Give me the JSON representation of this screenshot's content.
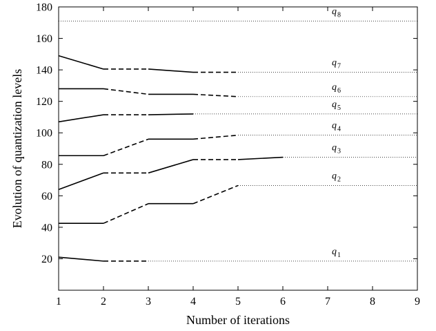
{
  "chart_data": {
    "type": "line",
    "title": "",
    "xlabel": "Number of iterations",
    "ylabel": "Evolution of quantization levels",
    "xlim": [
      1,
      9
    ],
    "ylim": [
      0,
      180
    ],
    "xticks": [
      1,
      2,
      3,
      4,
      5,
      6,
      7,
      8,
      9
    ],
    "yticks": [
      20,
      40,
      60,
      80,
      100,
      120,
      140,
      160,
      180
    ],
    "grid": false,
    "legend": "none",
    "line_style_note": "segments alternate solid and dashed; dotted horizontal line extends each final level to the right edge",
    "series": [
      {
        "name": "q1",
        "label_main": "q",
        "label_sub": "1",
        "x": [
          1,
          2,
          3
        ],
        "y": [
          21,
          18.5,
          18.5
        ],
        "label_x": 7.2
      },
      {
        "name": "q2",
        "label_main": "q",
        "label_sub": "2",
        "x": [
          1,
          2,
          3,
          4,
          5
        ],
        "y": [
          42.5,
          42.5,
          55,
          55,
          66.5
        ],
        "label_x": 7.2
      },
      {
        "name": "q3",
        "label_main": "q",
        "label_sub": "3",
        "x": [
          1,
          2,
          3,
          4,
          5,
          6
        ],
        "y": [
          64,
          74.5,
          74.5,
          83,
          83,
          84.5
        ],
        "label_x": 7.2
      },
      {
        "name": "q4",
        "label_main": "q",
        "label_sub": "4",
        "x": [
          1,
          2,
          3,
          4,
          5
        ],
        "y": [
          85.5,
          85.5,
          96,
          96,
          98.5
        ],
        "label_x": 7.2
      },
      {
        "name": "q5",
        "label_main": "q",
        "label_sub": "5",
        "x": [
          1,
          2,
          3,
          4
        ],
        "y": [
          107,
          111.5,
          111.5,
          112
        ],
        "label_x": 7.2
      },
      {
        "name": "q6",
        "label_main": "q",
        "label_sub": "6",
        "x": [
          1,
          2,
          3,
          4,
          5
        ],
        "y": [
          128,
          128,
          124.5,
          124.5,
          123
        ],
        "label_x": 7.2
      },
      {
        "name": "q7",
        "label_main": "q",
        "label_sub": "7",
        "x": [
          1,
          2,
          3,
          4,
          5
        ],
        "y": [
          149,
          140.5,
          140.5,
          138.5,
          138.5
        ],
        "label_x": 7.2
      },
      {
        "name": "q8",
        "label_main": "q",
        "label_sub": "8",
        "x": [],
        "y": [],
        "final_level": 171,
        "label_x": 7.2
      }
    ]
  }
}
